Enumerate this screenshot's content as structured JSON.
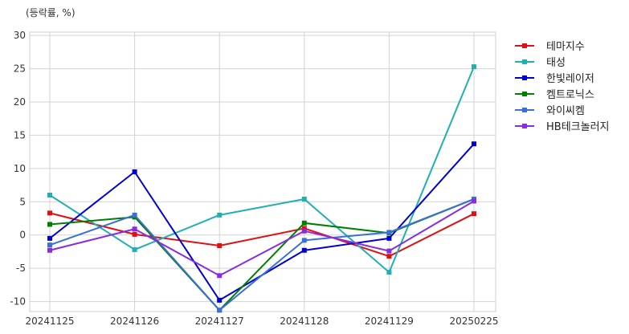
{
  "chart_data": {
    "type": "line",
    "unit_label": "(등락률, %)",
    "x": [
      "20241125",
      "20241126",
      "20241127",
      "20241128",
      "20241129",
      "20250225"
    ],
    "ylim": [
      -11.5,
      30.5
    ],
    "yticks": [
      -10,
      -5,
      0,
      5,
      10,
      15,
      20,
      25,
      30
    ],
    "grid": true,
    "legend_position": "right",
    "marker": "square",
    "series": [
      {
        "name": "테마지수",
        "color": "#e01010",
        "values": [
          3.3,
          0.1,
          -1.6,
          1.0,
          -3.2,
          3.2
        ]
      },
      {
        "name": "태성",
        "color": "#20b0b0",
        "values": [
          6.0,
          -2.2,
          3.0,
          5.4,
          -5.6,
          25.3
        ]
      },
      {
        "name": "한빛레이저",
        "color": "#0000d0",
        "values": [
          -0.5,
          9.5,
          -9.8,
          -2.3,
          -0.5,
          13.7
        ]
      },
      {
        "name": "켐트로닉스",
        "color": "#008000",
        "values": [
          1.6,
          2.7,
          -11.3,
          1.8,
          0.3,
          5.4
        ]
      },
      {
        "name": "와이씨켐",
        "color": "#3a6fd8",
        "values": [
          -1.5,
          3.0,
          -11.3,
          -0.8,
          0.4,
          5.4
        ]
      },
      {
        "name": "HB테크놀러지",
        "color": "#8a2be2",
        "values": [
          -2.3,
          0.9,
          -6.1,
          0.6,
          -2.4,
          5.1
        ]
      }
    ]
  }
}
